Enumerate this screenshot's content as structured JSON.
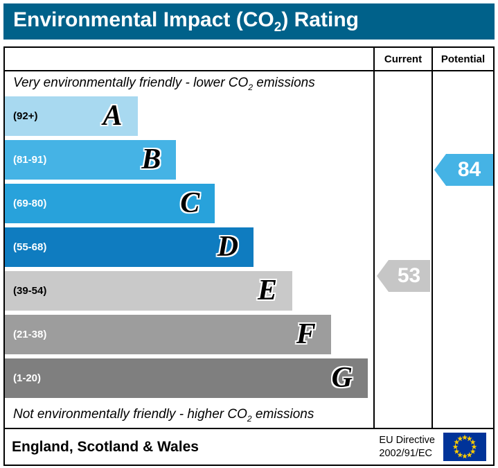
{
  "banner": {
    "title_pre": "Environmental Impact (CO",
    "title_sub": "2",
    "title_post": ") Rating"
  },
  "table": {
    "current_header": "Current",
    "potential_header": "Potential",
    "top_note": {
      "pre": "Very environmentally friendly - lower CO",
      "sub": "2",
      "post": " emissions"
    },
    "bottom_note": {
      "pre": "Not environmentally friendly - higher CO",
      "sub": "2",
      "post": " emissions"
    }
  },
  "bands": [
    {
      "letter": "A",
      "range_label": "(92+)",
      "min": 92,
      "max": 100,
      "color": "#a8d9f0",
      "text_color": "#000000",
      "width_pct": 36
    },
    {
      "letter": "B",
      "range_label": "(81-91)",
      "min": 81,
      "max": 91,
      "color": "#45b3e5",
      "text_color": "#ffffff",
      "width_pct": 46.5
    },
    {
      "letter": "C",
      "range_label": "(69-80)",
      "min": 69,
      "max": 80,
      "color": "#28a2db",
      "text_color": "#ffffff",
      "width_pct": 57
    },
    {
      "letter": "D",
      "range_label": "(55-68)",
      "min": 55,
      "max": 68,
      "color": "#0f7cc0",
      "text_color": "#ffffff",
      "width_pct": 67.5
    },
    {
      "letter": "E",
      "range_label": "(39-54)",
      "min": 39,
      "max": 54,
      "color": "#c9c9c9",
      "text_color": "#000000",
      "width_pct": 78
    },
    {
      "letter": "F",
      "range_label": "(21-38)",
      "min": 21,
      "max": 38,
      "color": "#9d9d9d",
      "text_color": "#ffffff",
      "width_pct": 88.5
    },
    {
      "letter": "G",
      "range_label": "(1-20)",
      "min": 1,
      "max": 20,
      "color": "#7f7f7f",
      "text_color": "#ffffff",
      "width_pct": 98.5
    }
  ],
  "indicators": {
    "current": {
      "value": 53,
      "band": "E",
      "color": "#c6c6c6"
    },
    "potential": {
      "value": 84,
      "band": "B",
      "color": "#45b3e5"
    }
  },
  "footer": {
    "region": "England, Scotland & Wales",
    "directive_line1": "EU Directive",
    "directive_line2": "2002/91/EC"
  },
  "colors": {
    "banner_bg": "#00618a",
    "border": "#000000",
    "eu_flag_blue": "#003399",
    "eu_flag_star": "#ffcc00"
  },
  "chart_data": {
    "type": "bar",
    "title": "Environmental Impact (CO2) Rating",
    "categories": [
      "A",
      "B",
      "C",
      "D",
      "E",
      "F",
      "G"
    ],
    "band_ranges": [
      "92+",
      "81-91",
      "69-80",
      "55-68",
      "39-54",
      "21-38",
      "1-20"
    ],
    "band_widths_pct": [
      36,
      46.5,
      57,
      67.5,
      78,
      88.5,
      98.5
    ],
    "scale": [
      1,
      100
    ],
    "series": [
      {
        "name": "Current",
        "values": [
          53
        ],
        "band": "E"
      },
      {
        "name": "Potential",
        "values": [
          84
        ],
        "band": "B"
      }
    ],
    "top_annotation": "Very environmentally friendly - lower CO2 emissions",
    "bottom_annotation": "Not environmentally friendly - higher CO2 emissions",
    "region": "England, Scotland & Wales",
    "directive": "EU Directive 2002/91/EC",
    "legend_position": "none",
    "grid": false
  }
}
